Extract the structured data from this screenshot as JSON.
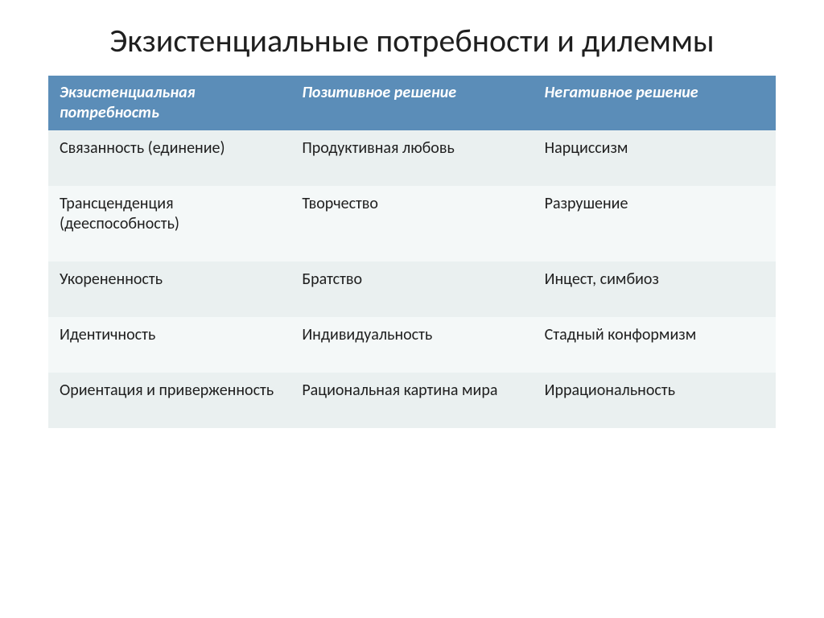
{
  "slide": {
    "title": "Экзистенциальные потребности и дилеммы"
  },
  "table": {
    "columns": [
      "Экзистенциальная потребность",
      "Позитивное решение",
      "Негативное решение"
    ],
    "rows": [
      [
        "Связанность (единение)",
        "Продуктивная любовь",
        "Нарциссизм"
      ],
      [
        "Трансценденция (дееспособность)",
        "Творчество",
        "Разрушение"
      ],
      [
        "Укорененность",
        "Братство",
        "Инцест, симбиоз"
      ],
      [
        "Идентичность",
        "Индивидуальность",
        "Стадный конформизм"
      ],
      [
        "Ориентация и приверженность",
        "Рациональная картина мира",
        "Иррациональность"
      ]
    ],
    "header_bg": "#5b8db8",
    "header_text_color": "#ffffff",
    "row_odd_bg": "#eaf0f0",
    "row_even_bg": "#f4f8f8",
    "body_text_color": "#1f1f1f",
    "header_fontsize": 20,
    "body_fontsize": 20,
    "title_fontsize": 40
  }
}
